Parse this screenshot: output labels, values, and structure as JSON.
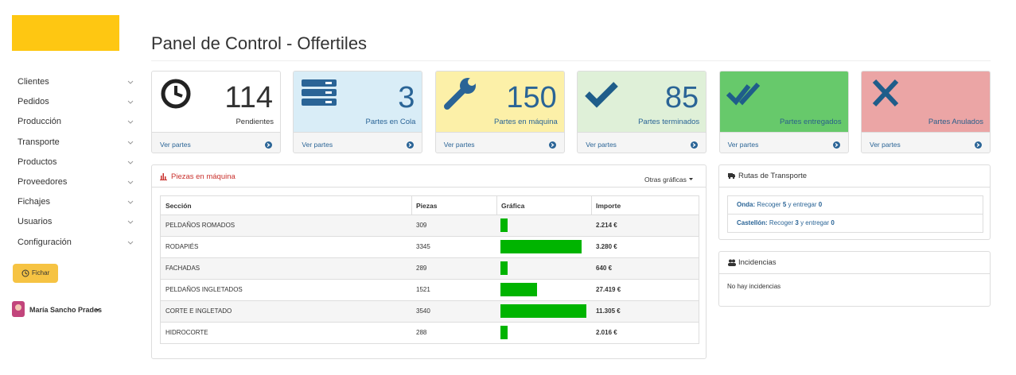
{
  "sidebar": {
    "menu": [
      "Clientes",
      "Pedidos",
      "Producción",
      "Transporte",
      "Productos",
      "Proveedores",
      "Fichajes",
      "Usuarios",
      "Configuración"
    ],
    "button": "Fichar",
    "user": "María Sancho Prades"
  },
  "header": {
    "title": "Panel de Control - Offertiles"
  },
  "cards": [
    {
      "value": 114,
      "label": "Pendientes",
      "link": "Ver partes"
    },
    {
      "value": 3,
      "label": "Partes en Cola",
      "link": "Ver partes"
    },
    {
      "value": 150,
      "label": "Partes en máquina",
      "link": "Ver partes"
    },
    {
      "value": 85,
      "label": "Partes terminados",
      "link": "Ver partes"
    },
    {
      "label": "Partes entregados",
      "link": "Ver partes"
    },
    {
      "label": "Partes Anulados",
      "link": "Ver partes"
    }
  ],
  "pieces_panel": {
    "title": "Piezas en máquina",
    "menu": "Otras gráficas",
    "table": {
      "columns": [
        "Sección",
        "Piezas",
        "Gráfica",
        "Importe"
      ],
      "rows": [
        {
          "section": "PELDAÑOS ROMADOS",
          "pieces": 309,
          "amount": "2.214 €"
        },
        {
          "section": "RODAPIÉS",
          "pieces": 3345,
          "amount": "3.280 €"
        },
        {
          "section": "FACHADAS",
          "pieces": 289,
          "amount": "640 €"
        },
        {
          "section": "PELDAÑOS INGLETADOS",
          "pieces": 1521,
          "amount": "27.419 €"
        },
        {
          "section": "CORTE E INGLETADO",
          "pieces": 3540,
          "amount": "11.305 €"
        },
        {
          "section": "HIDROCORTE",
          "pieces": 288,
          "amount": "2.016 €"
        }
      ]
    }
  },
  "routes_panel": {
    "title": "Rutas de Transporte",
    "routes": [
      {
        "place": "Onda:",
        "pickup_text": "Recoger",
        "pickup": 5,
        "deliver_text": "y entregar",
        "deliver": 0
      },
      {
        "place": "Castellón:",
        "pickup_text": "Recoger",
        "pickup": 3,
        "deliver_text": "y entregar",
        "deliver": 0
      }
    ]
  },
  "incidents_panel": {
    "title": "Incidencias",
    "message": "No hay incidencias"
  }
}
